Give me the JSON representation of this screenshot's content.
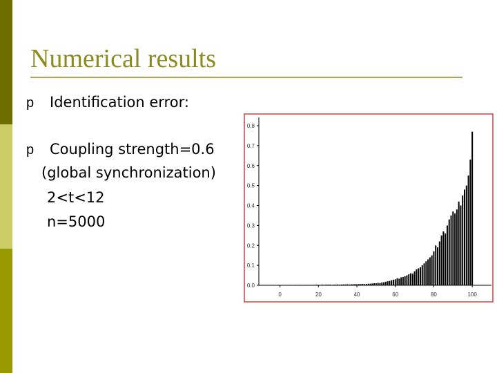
{
  "title": "Numerical results",
  "bullets": [
    {
      "marker": "p",
      "lines": [
        "Identification error:"
      ]
    },
    {
      "marker": "p",
      "lines": [
        "Coupling strength=0.6",
        "(global synchronization)",
        "2<t<12",
        "n=5000"
      ]
    }
  ],
  "chart_data": {
    "type": "bar",
    "color": "#000000",
    "x": [
      1,
      2,
      3,
      4,
      5,
      6,
      7,
      8,
      9,
      10,
      11,
      12,
      13,
      14,
      15,
      16,
      17,
      18,
      19,
      20,
      21,
      22,
      23,
      24,
      25,
      26,
      27,
      28,
      29,
      30,
      31,
      32,
      33,
      34,
      35,
      36,
      37,
      38,
      39,
      40,
      41,
      42,
      43,
      44,
      45,
      46,
      47,
      48,
      49,
      50,
      51,
      52,
      53,
      54,
      55,
      56,
      57,
      58,
      59,
      60,
      61,
      62,
      63,
      64,
      65,
      66,
      67,
      68,
      69,
      70,
      71,
      72,
      73,
      74,
      75,
      76,
      77,
      78,
      79,
      80,
      81,
      82,
      83,
      84,
      85,
      86,
      87,
      88,
      89,
      90,
      91,
      92,
      93,
      94,
      95,
      96,
      97,
      98,
      99,
      100
    ],
    "values": [
      0.001,
      0.001,
      0.001,
      0.001,
      0.002,
      0.001,
      0.001,
      0.002,
      0.001,
      0.002,
      0.002,
      0.001,
      0.002,
      0.002,
      0.001,
      0.002,
      0.002,
      0.002,
      0.003,
      0.002,
      0.002,
      0.003,
      0.002,
      0.003,
      0.003,
      0.003,
      0.002,
      0.003,
      0.003,
      0.004,
      0.003,
      0.004,
      0.004,
      0.004,
      0.005,
      0.004,
      0.005,
      0.005,
      0.006,
      0.005,
      0.006,
      0.006,
      0.007,
      0.006,
      0.007,
      0.008,
      0.008,
      0.009,
      0.01,
      0.01,
      0.012,
      0.011,
      0.014,
      0.015,
      0.018,
      0.02,
      0.022,
      0.025,
      0.028,
      0.03,
      0.035,
      0.033,
      0.04,
      0.042,
      0.045,
      0.05,
      0.055,
      0.06,
      0.058,
      0.07,
      0.08,
      0.085,
      0.09,
      0.1,
      0.11,
      0.12,
      0.13,
      0.14,
      0.15,
      0.17,
      0.2,
      0.19,
      0.22,
      0.25,
      0.27,
      0.26,
      0.3,
      0.33,
      0.35,
      0.37,
      0.36,
      0.38,
      0.42,
      0.4,
      0.45,
      0.48,
      0.5,
      0.55,
      0.63,
      0.77
    ],
    "xlim": [
      -11,
      110
    ],
    "xticks": [
      0,
      20,
      40,
      60,
      80,
      100
    ],
    "ylim": [
      0,
      0.8
    ],
    "yticks": [
      {
        "value": 0,
        "label": "0.0"
      },
      0.1,
      0.2,
      0.3,
      0.4,
      0.5,
      0.6,
      0.7,
      0.8
    ]
  }
}
